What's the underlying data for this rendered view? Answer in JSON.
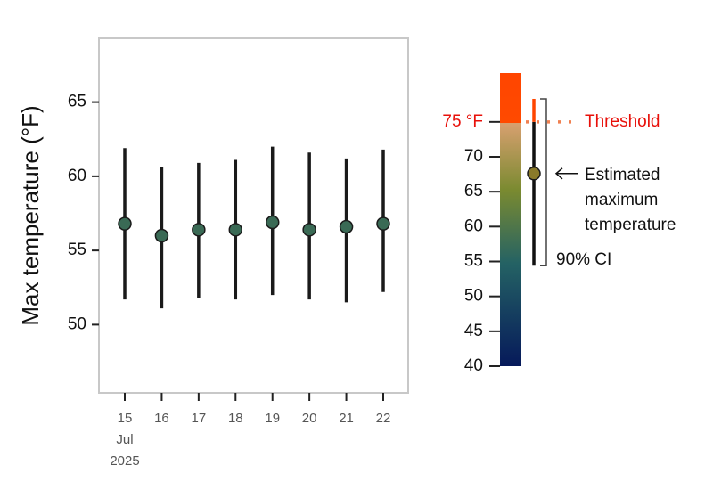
{
  "chart_data": {
    "type": "errorbar",
    "y_label": "Max temperature (°F)",
    "categories": [
      "15",
      "16",
      "17",
      "18",
      "19",
      "20",
      "21",
      "22"
    ],
    "x_month_label": "Jul",
    "x_year_label": "2025",
    "series": [
      {
        "color": "#3a6a55",
        "values": [
          56.8,
          56.0,
          56.4,
          56.4,
          56.9,
          56.4,
          56.6,
          56.8
        ],
        "lower": [
          51.7,
          51.1,
          51.8,
          51.7,
          52.0,
          51.7,
          51.5,
          52.2
        ],
        "upper": [
          61.9,
          60.6,
          60.9,
          61.1,
          62.0,
          61.6,
          61.2,
          61.8
        ]
      }
    ],
    "ylim": [
      45.4,
      69.3
    ],
    "yticks": [
      50,
      55,
      60,
      65
    ],
    "legend": {
      "ylim": [
        40,
        82
      ],
      "yticks": [
        40,
        45,
        50,
        55,
        60,
        65,
        70
      ],
      "threshold": {
        "value": 75,
        "label": "75 °F"
      },
      "threshold_label": "Threshold",
      "estimate": 67.6,
      "estimate_color": "#8a7a2a",
      "ci": [
        54.4,
        78.3
      ],
      "estimate_label": [
        "Estimated",
        "maximum",
        "temperature"
      ],
      "ci_label": "90% CI"
    }
  }
}
